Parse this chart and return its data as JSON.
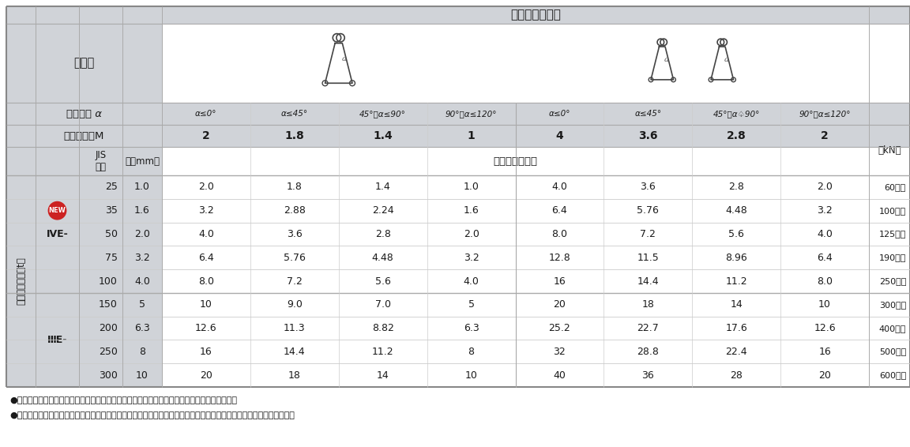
{
  "fig_w": 1152,
  "fig_h": 566,
  "colors": {
    "bg_gray": "#d0d3d8",
    "header_gray": "#c8cbd0",
    "mid_gray": "#d4d7dc",
    "light_gray": "#dcdfe4",
    "cell_white": "#f4f5f6",
    "data_white": "#ffffff",
    "border_dark": "#888888",
    "border_mid": "#aaaaaa",
    "border_light": "#cccccc",
    "text_dark": "#1a1a1a",
    "red": "#cc2222",
    "white": "#ffffff"
  },
  "top_header": "バスケットづり",
  "tsurikata": "つり方",
  "angle_row_label": "つり角度 α",
  "mode_row_label": "モード係数M",
  "jis_label": "JIS\n表示",
  "haba_label": "幅（mm）",
  "basket_cell": "バスケットづり",
  "kn_label": "（kN）",
  "left_vert_lines": [
    "最",
    "大",
    "使",
    "用",
    "荷",
    "重",
    "（t）"
  ],
  "angle_headers": [
    "α≤0°",
    "α≤45°",
    "45°＜α≤90°",
    "90°＜α≤120°",
    "α≤0°",
    "α≤45°",
    "45°＜α♤90°",
    "90°＜α≤120°"
  ],
  "mode_values": [
    "2",
    "1.8",
    "1.4",
    "1",
    "4",
    "3.6",
    "2.8",
    "2"
  ],
  "rows": [
    {
      "w": "25",
      "t": "1.0",
      "v": [
        "2.0",
        "1.8",
        "1.4",
        "1.0",
        "4.0",
        "3.6",
        "2.8",
        "2.0"
      ],
      "kn": "60以上"
    },
    {
      "w": "35",
      "t": "1.6",
      "v": [
        "3.2",
        "2.88",
        "2.24",
        "1.6",
        "6.4",
        "5.76",
        "4.48",
        "3.2"
      ],
      "kn": "100以上",
      "new": true
    },
    {
      "w": "50",
      "t": "2.0",
      "v": [
        "4.0",
        "3.6",
        "2.8",
        "2.0",
        "8.0",
        "7.2",
        "5.6",
        "4.0"
      ],
      "kn": "125以上"
    },
    {
      "w": "75",
      "t": "3.2",
      "v": [
        "6.4",
        "5.76",
        "4.48",
        "3.2",
        "12.8",
        "11.5",
        "8.96",
        "6.4"
      ],
      "kn": "190以上"
    },
    {
      "w": "100",
      "t": "4.0",
      "v": [
        "8.0",
        "7.2",
        "5.6",
        "4.0",
        "16",
        "14.4",
        "11.2",
        "8.0"
      ],
      "kn": "250以上"
    },
    {
      "w": "150",
      "t": "5",
      "v": [
        "10",
        "9.0",
        "7.0",
        "5",
        "20",
        "18",
        "14",
        "10"
      ],
      "kn": "300以上"
    },
    {
      "w": "200",
      "t": "6.3",
      "v": [
        "12.6",
        "11.3",
        "8.82",
        "6.3",
        "25.2",
        "22.7",
        "17.6",
        "12.6"
      ],
      "kn": "400以上"
    },
    {
      "w": "250",
      "t": "8",
      "v": [
        "16",
        "14.4",
        "11.2",
        "8",
        "32",
        "28.8",
        "22.4",
        "16"
      ],
      "kn": "500以上"
    },
    {
      "w": "300",
      "t": "10",
      "v": [
        "20",
        "18",
        "14",
        "10",
        "40",
        "36",
        "28",
        "20"
      ],
      "kn": "600以上"
    }
  ],
  "jis_labels": [
    "IVE-",
    "ⅢE-"
  ],
  "note1": "●スリングの使用荷重は荷の吹り方により変化します。上記の使用荷重以下でご使用ください。",
  "note2": "●角張った物を吹り上げる時や、横滑りのおそれのある場合、スリング保護のためにコーナーパットをご使用ください。"
}
